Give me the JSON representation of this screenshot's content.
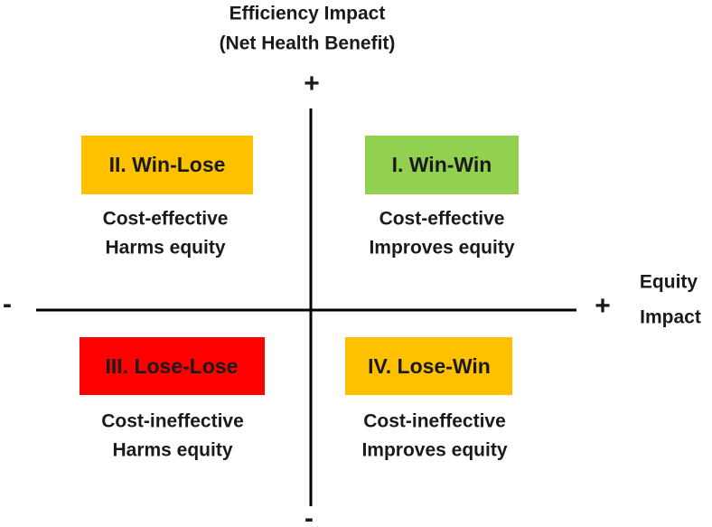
{
  "vertical_axis": {
    "title_lines": [
      "Efficiency Impact",
      "(Net Health Benefit)"
    ],
    "top_sign": "+",
    "bottom_sign": "-"
  },
  "horizontal_axis": {
    "title_lines": [
      "Equity",
      "Impact"
    ],
    "left_sign": "-",
    "right_sign": "+"
  },
  "quadrants": [
    {
      "label": "II. Win-Lose",
      "description": [
        "Cost-effective",
        "Harms equity"
      ]
    },
    {
      "label": "I. Win-Win",
      "description": [
        "Cost-effective",
        "Improves equity"
      ]
    },
    {
      "label": "III. Lose-Lose",
      "description": [
        "Cost-ineffective",
        "Harms equity"
      ]
    },
    {
      "label": "IV. Lose-Win",
      "description": [
        "Cost-ineffective",
        "Improves equity"
      ]
    }
  ]
}
